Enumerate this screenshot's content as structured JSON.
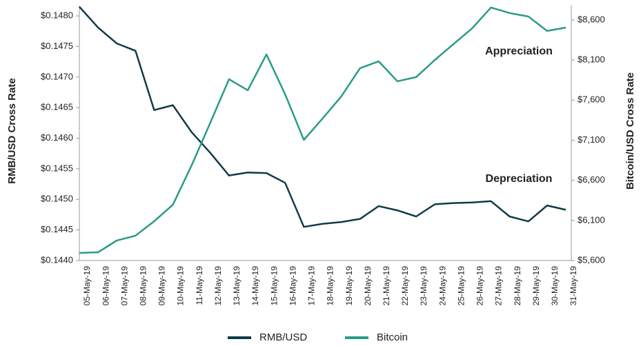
{
  "chart_data": {
    "type": "line",
    "y_label": "RMB/USD Cross Rate",
    "y2_label": "Bitcoin/USD Cross Rate",
    "annotations": [
      "Appreciation",
      "Depreciation"
    ],
    "categories": [
      "05-May-19",
      "06-May-19",
      "07-May-19",
      "08-May-19",
      "09-May-19",
      "10-May-19",
      "11-May-19",
      "12-May-19",
      "13-May-19",
      "14-May-19",
      "15-May-19",
      "16-May-19",
      "17-May-19",
      "18-May-19",
      "19-May-19",
      "20-May-19",
      "21-May-19",
      "22-May-19",
      "23-May-19",
      "24-May-19",
      "25-May-19",
      "26-May-19",
      "27-May-19",
      "28-May-19",
      "29-May-19",
      "30-May-19",
      "31-May-19"
    ],
    "series": [
      {
        "name": "RMB/USD",
        "color": "#0d3b47",
        "axis": "y",
        "values": [
          0.14815,
          0.14781,
          0.14755,
          0.14743,
          0.14646,
          0.14654,
          0.1461,
          0.14576,
          0.14539,
          0.14544,
          0.14543,
          0.14527,
          0.14455,
          0.1446,
          0.14463,
          0.14468,
          0.14489,
          0.14482,
          0.14472,
          0.14492,
          0.14494,
          0.14495,
          0.14497,
          0.14472,
          0.14464,
          0.1449,
          0.14483
        ]
      },
      {
        "name": "Bitcoin",
        "color": "#279b87",
        "axis": "y2",
        "values": [
          5695,
          5703,
          5850,
          5910,
          6090,
          6296,
          6786,
          7319,
          7861,
          7723,
          8170,
          7672,
          7104,
          7371,
          7646,
          7998,
          8084,
          7835,
          7887,
          8101,
          8299,
          8497,
          8755,
          8686,
          8643,
          8463,
          8505
        ]
      }
    ],
    "ylim": [
      0.144,
      0.14817
    ],
    "yticks": [
      {
        "value": 0.144,
        "label": "$0.1440"
      },
      {
        "value": 0.1445,
        "label": "$0.1445"
      },
      {
        "value": 0.145,
        "label": "$0.1450"
      },
      {
        "value": 0.1455,
        "label": "$0.1455"
      },
      {
        "value": 0.146,
        "label": "$0.1460"
      },
      {
        "value": 0.1465,
        "label": "$0.1465"
      },
      {
        "value": 0.147,
        "label": "$0.1470"
      },
      {
        "value": 0.1475,
        "label": "$0.1475"
      },
      {
        "value": 0.148,
        "label": "$0.1480"
      }
    ],
    "y2lim": [
      5600,
      8780
    ],
    "y2ticks": [
      {
        "value": 5600,
        "label": "$5,600"
      },
      {
        "value": 6100,
        "label": "$6,100"
      },
      {
        "value": 6600,
        "label": "$6,600"
      },
      {
        "value": 7100,
        "label": "$7,100"
      },
      {
        "value": 7600,
        "label": "$7,600"
      },
      {
        "value": 8100,
        "label": "$8,100"
      },
      {
        "value": 8600,
        "label": "$8,600"
      }
    ]
  }
}
